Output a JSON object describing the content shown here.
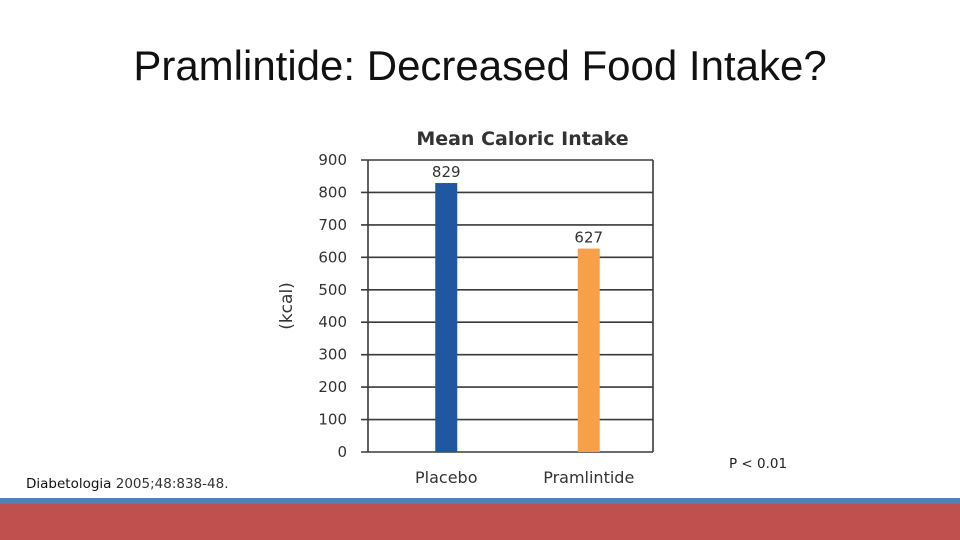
{
  "slide": {
    "title": "Pramlintide: Decreased Food Intake?",
    "citation_journal": "Diabetologia",
    "citation_rest": " 2005;48:838-48.",
    "p_value": "P < 0.01"
  },
  "colors": {
    "footer_blue": "#4f81bd",
    "footer_red": "#c0504d"
  },
  "chart_data": {
    "type": "bar",
    "title": "Mean Caloric Intake",
    "ylabel": "(kcal)",
    "xlabel": "",
    "categories": [
      "Placebo",
      "Pramlintide"
    ],
    "values": [
      829,
      627
    ],
    "data_labels": [
      "829",
      "627"
    ],
    "colors": [
      "#1f58a0",
      "#f7a04a"
    ],
    "ylim": [
      0,
      900
    ],
    "yticks": [
      0,
      100,
      200,
      300,
      400,
      500,
      600,
      700,
      800,
      900
    ],
    "grid": true,
    "legend": "none"
  }
}
